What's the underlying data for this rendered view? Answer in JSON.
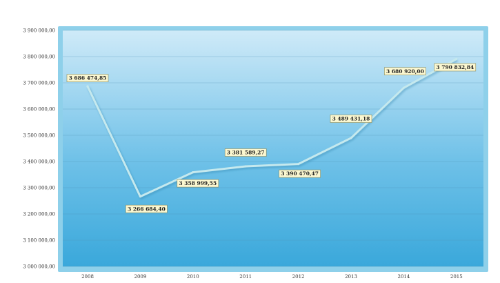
{
  "chart_data": {
    "type": "line",
    "title": "",
    "xlabel": "",
    "ylabel": "",
    "categories": [
      "2008",
      "2009",
      "2010",
      "2011",
      "2012",
      "2013",
      "2014",
      "2015"
    ],
    "series": [
      {
        "values": [
          3686474.85,
          3266684.4,
          3358999.55,
          3381589.27,
          3390470.47,
          3489431.18,
          3680920.0,
          3790832.84
        ],
        "labels": [
          "3 686 474,85",
          "3 266 684,40",
          "3 358 999,55",
          "3 381 589,27",
          "3 390 470,47",
          "3 489 431,18",
          "3 680 920,00",
          "3 790 832,84"
        ]
      }
    ],
    "ylim": [
      3000000,
      3900000
    ],
    "yticks": [
      3000000,
      3100000,
      3200000,
      3300000,
      3400000,
      3500000,
      3600000,
      3700000,
      3800000,
      3900000
    ],
    "ytick_labels": [
      "3 000 000,00",
      "3 100 000,00",
      "3 200 000,00",
      "3 300 000,00",
      "3 400 000,00",
      "3 500 000,00",
      "3 600 000,00",
      "3 700 000,00",
      "3 800 000,00",
      "3 900 000,00"
    ],
    "grid": true,
    "legend": "none",
    "colors": {
      "plot_top": "#cfeaf8",
      "plot_bottom": "#3aa8db",
      "frame": "#8ed0ea",
      "line": "#c5e9ee",
      "grid": "#4d8fb3"
    }
  }
}
